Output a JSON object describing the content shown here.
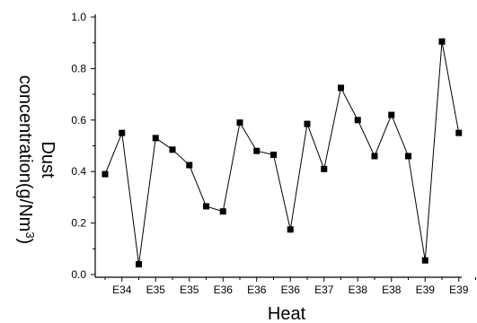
{
  "chart_data": {
    "type": "line",
    "xlabel": "Heat",
    "ylabel": "Dust concentration(g/Nm³)",
    "ylabel_line1": "Dust",
    "ylabel_line2": "concentration(g/Nm",
    "ylabel_sup": "3",
    "ylabel_close": ")",
    "ylim": [
      0.0,
      1.0
    ],
    "y_ticks": [
      "0.0",
      "0.2",
      "0.4",
      "0.6",
      "0.8",
      "1.0"
    ],
    "x_tick_labels": [
      "E34",
      "E35",
      "E35",
      "E36",
      "E36",
      "E36",
      "E37",
      "E38",
      "E38",
      "E39",
      "E39"
    ],
    "grid": false,
    "marker": "square",
    "line_color": "#000000",
    "series": [
      {
        "values": [
          0.39,
          0.55,
          0.04,
          0.53,
          0.485,
          0.425,
          0.265,
          0.245,
          0.59,
          0.48,
          0.465,
          0.175,
          0.585,
          0.41,
          0.725,
          0.6,
          0.46,
          0.62,
          0.46,
          0.055,
          0.905,
          0.55
        ]
      }
    ]
  }
}
